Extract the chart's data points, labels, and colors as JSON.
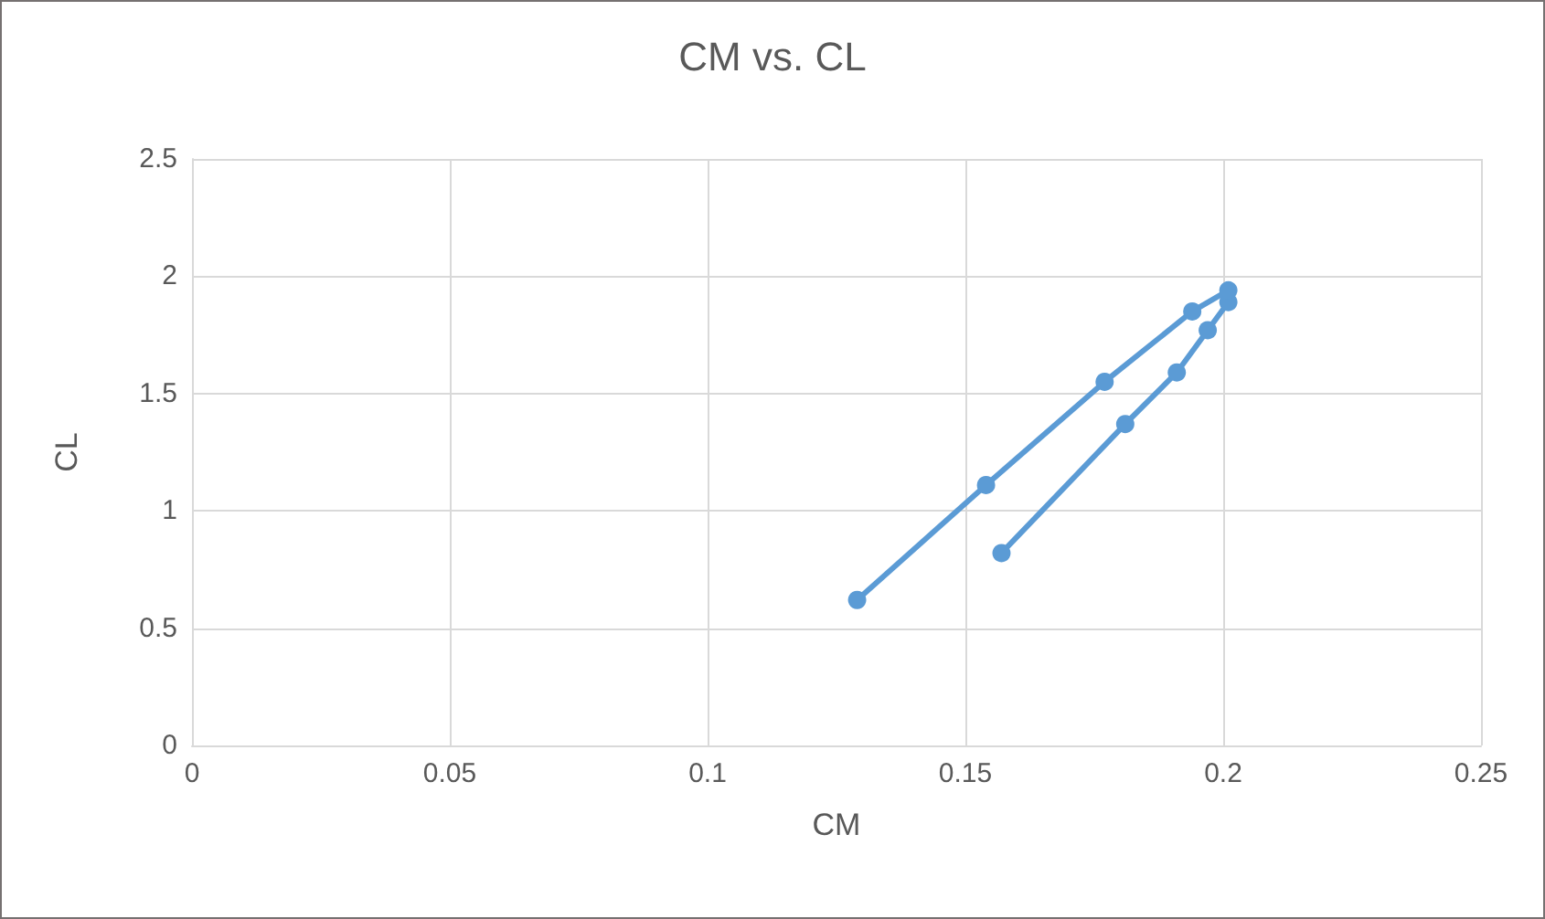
{
  "chart_data": {
    "type": "line",
    "title": "CM vs. CL",
    "xlabel": "CM",
    "ylabel": "CL",
    "series": [
      {
        "color": "#5b9bd5",
        "x": [
          0.157,
          0.181,
          0.191,
          0.197,
          0.201,
          0.201,
          0.194,
          0.177,
          0.154,
          0.129
        ],
        "values": [
          0.82,
          1.37,
          1.59,
          1.77,
          1.89,
          1.94,
          1.85,
          1.55,
          1.11,
          0.62
        ]
      }
    ],
    "xlim": [
      0,
      0.25
    ],
    "xticks": [
      0,
      0.05,
      0.1,
      0.15,
      0.2,
      0.25
    ],
    "ylim": [
      0,
      2.5
    ],
    "yticks": [
      0,
      0.5,
      1,
      1.5,
      2,
      2.5
    ],
    "grid": true,
    "marker": "circle",
    "line_style": "solid"
  }
}
